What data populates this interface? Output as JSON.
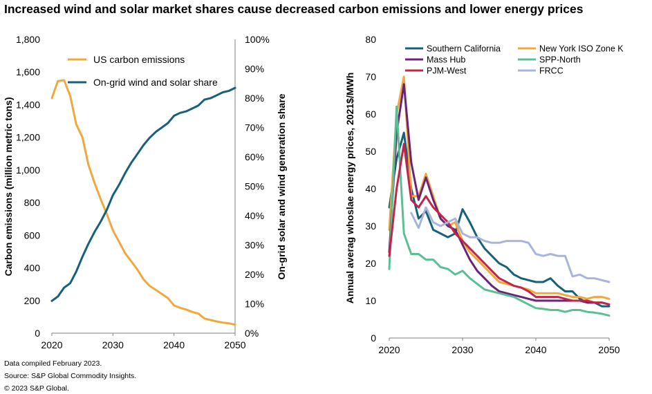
{
  "title": "Increased wind and solar market shares cause decreased carbon emissions and lower energy prices",
  "footer": [
    "Data compiled February 2023.",
    "Source: S&P Global Commodity Insights.",
    "© 2023 S&P Global."
  ],
  "chart_data": [
    {
      "type": "line",
      "xlabel": "",
      "ylabel": "Carbon emissions (million metric tons)",
      "y2label": "On-grid solar and wind  generation share",
      "xlim": [
        2020,
        2050
      ],
      "ylim": [
        0,
        1800
      ],
      "y2lim": [
        0,
        100
      ],
      "xticks": [
        "2020",
        "2030",
        "2040",
        "2050"
      ],
      "yticks": [
        "0",
        "200",
        "400",
        "600",
        "800",
        "1,000",
        "1,200",
        "1,400",
        "1,600",
        "1,800"
      ],
      "y2ticks": [
        "0%",
        "10%",
        "20%",
        "30%",
        "40%",
        "50%",
        "60%",
        "70%",
        "80%",
        "90%",
        "100%"
      ],
      "grid": false,
      "legend": "top-left",
      "series": [
        {
          "name": "US carbon emissions",
          "axis": "left",
          "color": "#F0A83C",
          "x": [
            2020,
            2021,
            2022,
            2023,
            2024,
            2025,
            2026,
            2027,
            2028,
            2029,
            2030,
            2031,
            2032,
            2033,
            2034,
            2035,
            2036,
            2037,
            2038,
            2039,
            2040,
            2041,
            2042,
            2043,
            2044,
            2045,
            2046,
            2047,
            2048,
            2049,
            2050
          ],
          "values": [
            1440,
            1545,
            1550,
            1455,
            1280,
            1200,
            1030,
            920,
            820,
            730,
            630,
            560,
            490,
            440,
            390,
            330,
            290,
            265,
            240,
            215,
            170,
            155,
            145,
            130,
            120,
            90,
            80,
            72,
            65,
            60,
            52
          ]
        },
        {
          "name": "On-grid wind and solar share",
          "axis": "right",
          "color": "#16607A",
          "x": [
            2020,
            2021,
            2022,
            2023,
            2024,
            2025,
            2026,
            2027,
            2028,
            2029,
            2030,
            2031,
            2032,
            2033,
            2034,
            2035,
            2036,
            2037,
            2038,
            2039,
            2040,
            2041,
            2042,
            2043,
            2044,
            2045,
            2046,
            2047,
            2048,
            2049,
            2050
          ],
          "values": [
            11,
            12.5,
            15.5,
            17,
            21,
            26,
            30.5,
            34.5,
            38,
            42,
            47,
            50.5,
            54.5,
            58,
            61,
            64,
            66.5,
            68.5,
            70,
            71.5,
            74,
            75,
            75.5,
            76.5,
            77.5,
            79.5,
            80,
            81,
            82,
            82.5,
            83.5
          ]
        }
      ]
    },
    {
      "type": "line",
      "xlabel": "",
      "ylabel": "Annual averag whoslae energy prices, 2021$/MWh",
      "xlim": [
        2020,
        2050
      ],
      "ylim": [
        0,
        80
      ],
      "xticks": [
        "2020",
        "2030",
        "2040",
        "2050"
      ],
      "yticks": [
        "0",
        "10",
        "20",
        "30",
        "40",
        "50",
        "60",
        "70",
        "80"
      ],
      "grid": false,
      "legend": "top",
      "series": [
        {
          "name": "Southern California",
          "color": "#16607A",
          "x": [
            2020,
            2021,
            2022,
            2023,
            2024,
            2025,
            2026,
            2027,
            2028,
            2029,
            2030,
            2031,
            2032,
            2033,
            2034,
            2035,
            2036,
            2037,
            2038,
            2039,
            2040,
            2041,
            2042,
            2043,
            2044,
            2045,
            2046,
            2047,
            2048,
            2049,
            2050
          ],
          "values": [
            35,
            48,
            55,
            40,
            32,
            34,
            29,
            28,
            27,
            28,
            34.5,
            31,
            27,
            24,
            22,
            20,
            19,
            17,
            16,
            15.5,
            15,
            15,
            16,
            14,
            12.5,
            12.5,
            10.5,
            9.5,
            9.5,
            8.5,
            8.5
          ]
        },
        {
          "name": "New York ISO Zone K",
          "color": "#F0A83C",
          "x": [
            2020,
            2021,
            2022,
            2023,
            2024,
            2025,
            2026,
            2027,
            2028,
            2029,
            2030,
            2031,
            2032,
            2033,
            2034,
            2035,
            2036,
            2037,
            2038,
            2039,
            2040,
            2041,
            2042,
            2043,
            2044,
            2045,
            2046,
            2047,
            2048,
            2049,
            2050
          ],
          "values": [
            29,
            60,
            70,
            38,
            38,
            44,
            38,
            32,
            30,
            31,
            26,
            23,
            21,
            19,
            17,
            15,
            14.5,
            14,
            13.5,
            13,
            12,
            12,
            12,
            12,
            11.5,
            11,
            11,
            10.5,
            11,
            11,
            10.5
          ]
        },
        {
          "name": "Mass Hub",
          "color": "#6B2378",
          "x": [
            2020,
            2021,
            2022,
            2023,
            2024,
            2025,
            2026,
            2027,
            2028,
            2029,
            2030,
            2031,
            2032,
            2033,
            2034,
            2035,
            2036,
            2037,
            2038,
            2039,
            2040,
            2041,
            2042,
            2043,
            2044,
            2045,
            2046,
            2047,
            2048,
            2049,
            2050
          ],
          "values": [
            23,
            55,
            68,
            47,
            37,
            43,
            37,
            32,
            30,
            29,
            25,
            21,
            18,
            16,
            14,
            12.5,
            12,
            11.5,
            11,
            10.5,
            10,
            10,
            10,
            10,
            10,
            10,
            10,
            9.5,
            9.5,
            9.5,
            9
          ]
        },
        {
          "name": "SPP-North",
          "color": "#5BBF94",
          "x": [
            2020,
            2021,
            2022,
            2023,
            2024,
            2025,
            2026,
            2027,
            2028,
            2029,
            2030,
            2031,
            2032,
            2033,
            2034,
            2035,
            2036,
            2037,
            2038,
            2039,
            2040,
            2041,
            2042,
            2043,
            2044,
            2045,
            2046,
            2047,
            2048,
            2049,
            2050
          ],
          "values": [
            18.5,
            62,
            28,
            22.5,
            22.5,
            21,
            21,
            19,
            18.5,
            17,
            18,
            16,
            14.5,
            13,
            12.5,
            12,
            11.5,
            11,
            10,
            9,
            8,
            7.8,
            7.5,
            7.5,
            7,
            7.5,
            7.5,
            7,
            6.8,
            6.5,
            6
          ]
        },
        {
          "name": "PJM-West",
          "color": "#C0254A",
          "x": [
            2020,
            2021,
            2022,
            2023,
            2024,
            2025,
            2026,
            2027,
            2028,
            2029,
            2030,
            2031,
            2032,
            2033,
            2034,
            2035,
            2036,
            2037,
            2038,
            2039,
            2040,
            2041,
            2042,
            2043,
            2044,
            2045,
            2046,
            2047,
            2048,
            2049,
            2050
          ],
          "values": [
            22,
            40,
            52,
            37,
            35,
            38,
            35,
            33,
            31,
            28,
            26,
            24,
            22,
            20,
            18,
            16,
            15,
            14,
            13.5,
            12.5,
            11,
            11,
            11,
            11,
            10.5,
            10,
            10,
            10,
            9.5,
            9.5,
            9
          ]
        },
        {
          "name": "FRCC",
          "color": "#A9B4DB",
          "x": [
            2023,
            2024,
            2025,
            2026,
            2027,
            2028,
            2029,
            2030,
            2031,
            2032,
            2033,
            2034,
            2035,
            2036,
            2037,
            2038,
            2039,
            2040,
            2041,
            2042,
            2043,
            2044,
            2045,
            2046,
            2047,
            2048,
            2049,
            2050
          ],
          "values": [
            33.5,
            29.5,
            35,
            31,
            30,
            31,
            32,
            28,
            27,
            27,
            26,
            25.5,
            25.5,
            26,
            26,
            26,
            25.5,
            22.5,
            22,
            22.5,
            22,
            22,
            16.5,
            17,
            16,
            16,
            15.5,
            15
          ]
        }
      ]
    }
  ]
}
